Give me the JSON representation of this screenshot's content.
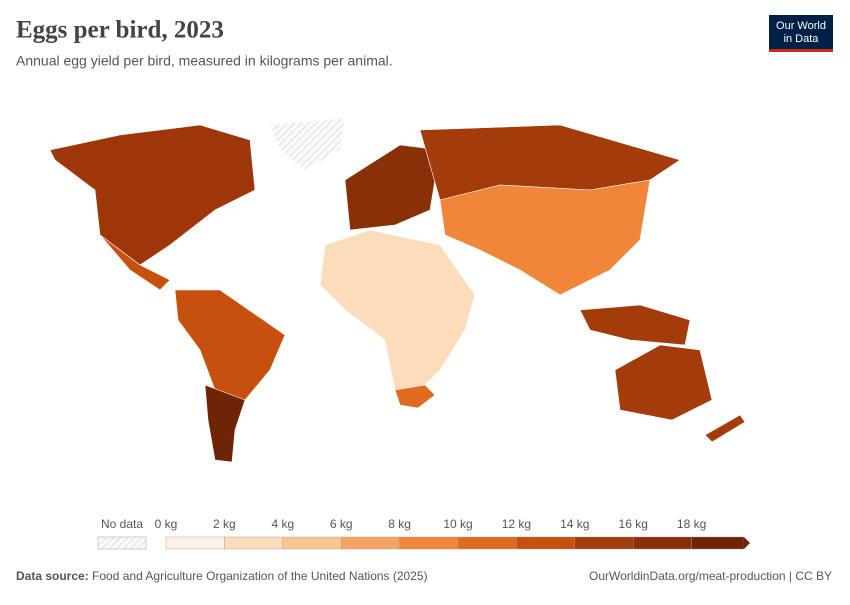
{
  "chart_data": {
    "type": "choropleth",
    "title": "Eggs per bird, 2023",
    "subtitle": "Annual egg yield per bird, measured in kilograms per animal.",
    "logo": [
      "Our World",
      "in Data"
    ],
    "no_data_label": "No data",
    "xlim": [
      0,
      20
    ],
    "xticks": [
      {
        "value": 0,
        "label": "0 kg"
      },
      {
        "value": 2,
        "label": "2 kg"
      },
      {
        "value": 4,
        "label": "4 kg"
      },
      {
        "value": 6,
        "label": "6 kg"
      },
      {
        "value": 8,
        "label": "8 kg"
      },
      {
        "value": 10,
        "label": "10 kg"
      },
      {
        "value": 12,
        "label": "12 kg"
      },
      {
        "value": 14,
        "label": "14 kg"
      },
      {
        "value": 16,
        "label": "16 kg"
      },
      {
        "value": 18,
        "label": "18 kg"
      }
    ],
    "colors": [
      "#fef2e6",
      "#fbdcbb",
      "#f8c490",
      "#f5a563",
      "#f1863a",
      "#e06a1f",
      "#c8500e",
      "#a33c0a",
      "#8a3009",
      "#6e2405"
    ],
    "source_label": "Data source:",
    "source": "Food and Agriculture Organization of the United Nations (2025)",
    "credit": "OurWorldinData.org/meat-production | CC BY"
  }
}
